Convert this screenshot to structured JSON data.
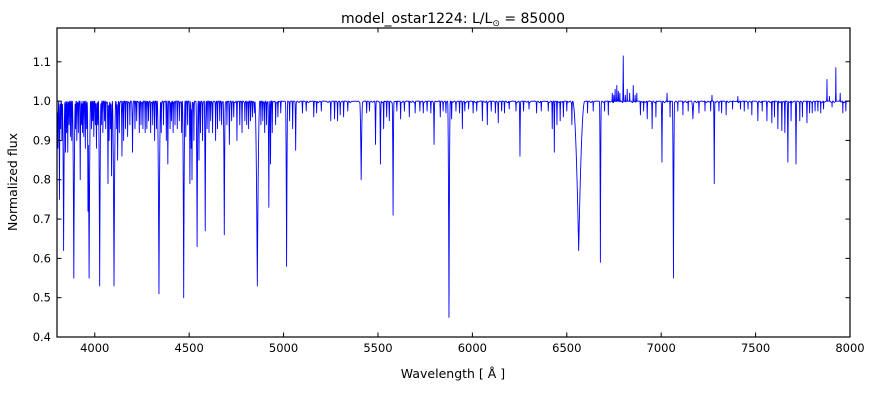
{
  "chart_data": {
    "type": "line",
    "title": "model_ostar1224: L/L⊙ = 85000",
    "title_parts": {
      "prefix": "model_ostar1224: L/L",
      "sun": "⊙",
      "suffix": " = 85000"
    },
    "xlabel": "Wavelength [ Å ]",
    "ylabel": "Normalized flux",
    "xlim": [
      3800,
      8000
    ],
    "ylim": [
      0.4,
      1.186
    ],
    "xticks": [
      4000,
      4500,
      5000,
      5500,
      6000,
      6500,
      7000,
      7500,
      8000
    ],
    "yticks": [
      0.4,
      0.5,
      0.6,
      0.7,
      0.8,
      0.9,
      1.0,
      1.1
    ],
    "grid": false,
    "legend": "none",
    "line_color": "#0000ff",
    "axis_color": "#000000",
    "background": "#ffffff",
    "continuum": 1.0,
    "absorption_lines": [
      [
        3801,
        0.93,
        3
      ],
      [
        3805,
        0.88,
        4
      ],
      [
        3813,
        0.75,
        4
      ],
      [
        3819,
        0.93,
        3
      ],
      [
        3826,
        0.9,
        3
      ],
      [
        3835,
        0.62,
        7
      ],
      [
        3845,
        0.87,
        3
      ],
      [
        3851,
        0.92,
        3
      ],
      [
        3857,
        0.87,
        3
      ],
      [
        3864,
        0.94,
        3
      ],
      [
        3871,
        0.91,
        3
      ],
      [
        3878,
        0.9,
        3
      ],
      [
        3889,
        0.55,
        8
      ],
      [
        3898,
        0.93,
        3
      ],
      [
        3905,
        0.9,
        3
      ],
      [
        3913,
        0.92,
        3
      ],
      [
        3923,
        0.8,
        4
      ],
      [
        3930,
        0.94,
        3
      ],
      [
        3935,
        0.92,
        3
      ],
      [
        3942,
        0.91,
        3
      ],
      [
        3950,
        0.88,
        3
      ],
      [
        3957,
        0.93,
        3
      ],
      [
        3964,
        0.72,
        4
      ],
      [
        3970,
        0.55,
        8
      ],
      [
        3983,
        0.93,
        3
      ],
      [
        3989,
        0.95,
        3
      ],
      [
        3995,
        0.91,
        3
      ],
      [
        4003,
        0.94,
        3
      ],
      [
        4009,
        0.88,
        4
      ],
      [
        4016,
        0.94,
        3
      ],
      [
        4026,
        0.53,
        7
      ],
      [
        4035,
        0.94,
        3
      ],
      [
        4043,
        0.92,
        3
      ],
      [
        4052,
        0.95,
        3
      ],
      [
        4058,
        0.93,
        3
      ],
      [
        4070,
        0.79,
        4
      ],
      [
        4076,
        0.9,
        3
      ],
      [
        4083,
        0.93,
        3
      ],
      [
        4089,
        0.81,
        4
      ],
      [
        4102,
        0.53,
        9
      ],
      [
        4116,
        0.93,
        3
      ],
      [
        4121,
        0.85,
        4
      ],
      [
        4130,
        0.92,
        3
      ],
      [
        4144,
        0.86,
        4
      ],
      [
        4153,
        0.9,
        3
      ],
      [
        4163,
        0.93,
        3
      ],
      [
        4174,
        0.91,
        3
      ],
      [
        4186,
        0.94,
        3
      ],
      [
        4200,
        0.87,
        5
      ],
      [
        4213,
        0.93,
        3
      ],
      [
        4222,
        0.95,
        3
      ],
      [
        4236,
        0.92,
        3
      ],
      [
        4245,
        0.94,
        3
      ],
      [
        4255,
        0.93,
        3
      ],
      [
        4267,
        0.92,
        3
      ],
      [
        4276,
        0.93,
        3
      ],
      [
        4285,
        0.95,
        3
      ],
      [
        4296,
        0.92,
        3
      ],
      [
        4307,
        0.94,
        3
      ],
      [
        4317,
        0.9,
        3
      ],
      [
        4327,
        0.93,
        3
      ],
      [
        4340,
        0.51,
        9
      ],
      [
        4352,
        0.92,
        3
      ],
      [
        4364,
        0.94,
        3
      ],
      [
        4379,
        0.9,
        3
      ],
      [
        4387,
        0.84,
        4
      ],
      [
        4399,
        0.93,
        3
      ],
      [
        4406,
        0.95,
        3
      ],
      [
        4415,
        0.92,
        3
      ],
      [
        4425,
        0.94,
        3
      ],
      [
        4437,
        0.93,
        3
      ],
      [
        4448,
        0.95,
        3
      ],
      [
        4460,
        0.92,
        3
      ],
      [
        4471,
        0.5,
        7
      ],
      [
        4482,
        0.91,
        3
      ],
      [
        4492,
        0.94,
        3
      ],
      [
        4504,
        0.79,
        4
      ],
      [
        4511,
        0.88,
        3
      ],
      [
        4515,
        0.8,
        3
      ],
      [
        4525,
        0.9,
        3
      ],
      [
        4542,
        0.63,
        6
      ],
      [
        4552,
        0.85,
        3
      ],
      [
        4560,
        0.92,
        3
      ],
      [
        4571,
        0.9,
        3
      ],
      [
        4585,
        0.67,
        5
      ],
      [
        4595,
        0.93,
        3
      ],
      [
        4605,
        0.92,
        3
      ],
      [
        4614,
        0.95,
        3
      ],
      [
        4624,
        0.92,
        3
      ],
      [
        4640,
        0.9,
        3
      ],
      [
        4650,
        0.93,
        3
      ],
      [
        4662,
        0.95,
        3
      ],
      [
        4672,
        0.94,
        3
      ],
      [
        4686,
        0.66,
        6
      ],
      [
        4700,
        0.94,
        3
      ],
      [
        4713,
        0.89,
        4
      ],
      [
        4725,
        0.95,
        3
      ],
      [
        4736,
        0.96,
        3
      ],
      [
        4753,
        0.9,
        3
      ],
      [
        4768,
        0.94,
        3
      ],
      [
        4780,
        0.92,
        3
      ],
      [
        4795,
        0.95,
        3
      ],
      [
        4805,
        0.94,
        3
      ],
      [
        4815,
        0.93,
        3
      ],
      [
        4825,
        0.95,
        3
      ],
      [
        4835,
        0.96,
        3
      ],
      [
        4845,
        0.97,
        3
      ],
      [
        4861,
        0.53,
        13
      ],
      [
        4880,
        0.94,
        3
      ],
      [
        4890,
        0.95,
        3
      ],
      [
        4900,
        0.92,
        3
      ],
      [
        4910,
        0.94,
        3
      ],
      [
        4922,
        0.73,
        5
      ],
      [
        4931,
        0.84,
        3
      ],
      [
        4940,
        0.92,
        3
      ],
      [
        4958,
        0.94,
        3
      ],
      [
        4970,
        0.96,
        3
      ],
      [
        4985,
        0.97,
        3
      ],
      [
        5016,
        0.58,
        6
      ],
      [
        5032,
        0.95,
        3
      ],
      [
        5048,
        0.93,
        3
      ],
      [
        5064,
        0.875,
        4
      ],
      [
        5100,
        0.97,
        3
      ],
      [
        5120,
        0.975,
        3
      ],
      [
        5160,
        0.96,
        3
      ],
      [
        5175,
        0.97,
        3
      ],
      [
        5200,
        0.975,
        3
      ],
      [
        5250,
        0.95,
        3
      ],
      [
        5270,
        0.955,
        3
      ],
      [
        5286,
        0.95,
        3
      ],
      [
        5300,
        0.965,
        3
      ],
      [
        5318,
        0.96,
        3
      ],
      [
        5340,
        0.975,
        3
      ],
      [
        5411,
        0.8,
        8
      ],
      [
        5440,
        0.97,
        3
      ],
      [
        5455,
        0.975,
        3
      ],
      [
        5487,
        0.89,
        4
      ],
      [
        5513,
        0.84,
        4
      ],
      [
        5530,
        0.93,
        3
      ],
      [
        5546,
        0.96,
        3
      ],
      [
        5560,
        0.95,
        3
      ],
      [
        5580,
        0.71,
        5
      ],
      [
        5600,
        0.975,
        3
      ],
      [
        5620,
        0.955,
        3
      ],
      [
        5640,
        0.975,
        3
      ],
      [
        5666,
        0.96,
        3
      ],
      [
        5697,
        0.97,
        3
      ],
      [
        5722,
        0.975,
        3
      ],
      [
        5740,
        0.97,
        3
      ],
      [
        5760,
        0.975,
        3
      ],
      [
        5780,
        0.97,
        3
      ],
      [
        5797,
        0.89,
        4
      ],
      [
        5830,
        0.96,
        3
      ],
      [
        5845,
        0.975,
        3
      ],
      [
        5860,
        0.97,
        3
      ],
      [
        5876,
        0.45,
        7
      ],
      [
        5890,
        0.955,
        3
      ],
      [
        5913,
        0.975,
        3
      ],
      [
        5932,
        0.97,
        3
      ],
      [
        5947,
        0.93,
        3
      ],
      [
        5960,
        0.975,
        3
      ],
      [
        5980,
        0.98,
        3
      ],
      [
        6004,
        0.97,
        3
      ],
      [
        6023,
        0.975,
        3
      ],
      [
        6053,
        0.95,
        3
      ],
      [
        6079,
        0.94,
        3
      ],
      [
        6100,
        0.975,
        3
      ],
      [
        6122,
        0.97,
        3
      ],
      [
        6137,
        0.945,
        3
      ],
      [
        6155,
        0.975,
        3
      ],
      [
        6170,
        0.97,
        3
      ],
      [
        6195,
        0.98,
        3
      ],
      [
        6231,
        0.975,
        3
      ],
      [
        6252,
        0.86,
        4
      ],
      [
        6271,
        0.975,
        3
      ],
      [
        6300,
        0.98,
        3
      ],
      [
        6340,
        0.97,
        3
      ],
      [
        6365,
        0.975,
        3
      ],
      [
        6402,
        0.975,
        3
      ],
      [
        6423,
        0.93,
        3
      ],
      [
        6434,
        0.87,
        3
      ],
      [
        6448,
        0.94,
        3
      ],
      [
        6465,
        0.95,
        3
      ],
      [
        6482,
        0.96,
        3
      ],
      [
        6500,
        0.975,
        3
      ],
      [
        6527,
        0.94,
        3
      ],
      [
        6563,
        0.62,
        32
      ],
      [
        6610,
        0.97,
        2
      ],
      [
        6640,
        0.975,
        2
      ],
      [
        6678,
        0.59,
        5
      ],
      [
        6700,
        0.975,
        2
      ],
      [
        6720,
        0.965,
        2
      ],
      [
        6890,
        0.965,
        3
      ],
      [
        6907,
        0.975,
        2
      ],
      [
        6926,
        0.955,
        3
      ],
      [
        6952,
        0.93,
        3
      ],
      [
        6972,
        0.96,
        2
      ],
      [
        7004,
        0.845,
        4
      ],
      [
        7047,
        0.96,
        2
      ],
      [
        7065,
        0.55,
        6
      ],
      [
        7088,
        0.975,
        2
      ],
      [
        7115,
        0.965,
        2
      ],
      [
        7143,
        0.975,
        2
      ],
      [
        7168,
        0.955,
        7
      ],
      [
        7200,
        0.97,
        3
      ],
      [
        7232,
        0.975,
        2
      ],
      [
        7262,
        0.975,
        2
      ],
      [
        7281,
        0.79,
        4
      ],
      [
        7306,
        0.975,
        2
      ],
      [
        7320,
        0.97,
        2
      ],
      [
        7344,
        0.965,
        2
      ],
      [
        7378,
        0.98,
        2
      ],
      [
        7420,
        0.98,
        2
      ],
      [
        7440,
        0.975,
        2
      ],
      [
        7460,
        0.98,
        2
      ],
      [
        7480,
        0.965,
        2
      ],
      [
        7512,
        0.95,
        3
      ],
      [
        7535,
        0.975,
        2
      ],
      [
        7560,
        0.95,
        3
      ],
      [
        7586,
        0.945,
        3
      ],
      [
        7600,
        0.96,
        2
      ],
      [
        7618,
        0.93,
        3
      ],
      [
        7639,
        0.925,
        3
      ],
      [
        7655,
        0.92,
        3
      ],
      [
        7671,
        0.845,
        4
      ],
      [
        7688,
        0.95,
        2
      ],
      [
        7714,
        0.84,
        4
      ],
      [
        7734,
        0.95,
        2
      ],
      [
        7748,
        0.96,
        2
      ],
      [
        7772,
        0.945,
        3
      ],
      [
        7786,
        0.97,
        2
      ],
      [
        7800,
        0.97,
        2
      ],
      [
        7815,
        0.975,
        2
      ],
      [
        7830,
        0.975,
        2
      ],
      [
        7845,
        0.97,
        2
      ],
      [
        7860,
        0.98,
        2
      ],
      [
        7905,
        0.985,
        2
      ],
      [
        7962,
        0.97,
        2
      ],
      [
        7978,
        0.975,
        2
      ]
    ],
    "emission_lines": [
      [
        6741,
        1.02,
        2
      ],
      [
        6749,
        1.015,
        2
      ],
      [
        6756,
        1.03,
        2
      ],
      [
        6765,
        1.04,
        2
      ],
      [
        6773,
        1.025,
        2
      ],
      [
        6781,
        1.02,
        2
      ],
      [
        6799,
        1.115,
        3
      ],
      [
        6810,
        1.015,
        2
      ],
      [
        6820,
        1.03,
        2
      ],
      [
        6833,
        1.02,
        2
      ],
      [
        6852,
        1.04,
        2
      ],
      [
        6862,
        1.015,
        2
      ],
      [
        6871,
        1.02,
        2
      ],
      [
        7031,
        1.02,
        2
      ],
      [
        7269,
        1.015,
        2
      ],
      [
        7406,
        1.012,
        2
      ],
      [
        7878,
        1.055,
        2
      ],
      [
        7891,
        1.012,
        2
      ],
      [
        7925,
        1.085,
        2
      ],
      [
        7948,
        1.02,
        2
      ]
    ]
  }
}
